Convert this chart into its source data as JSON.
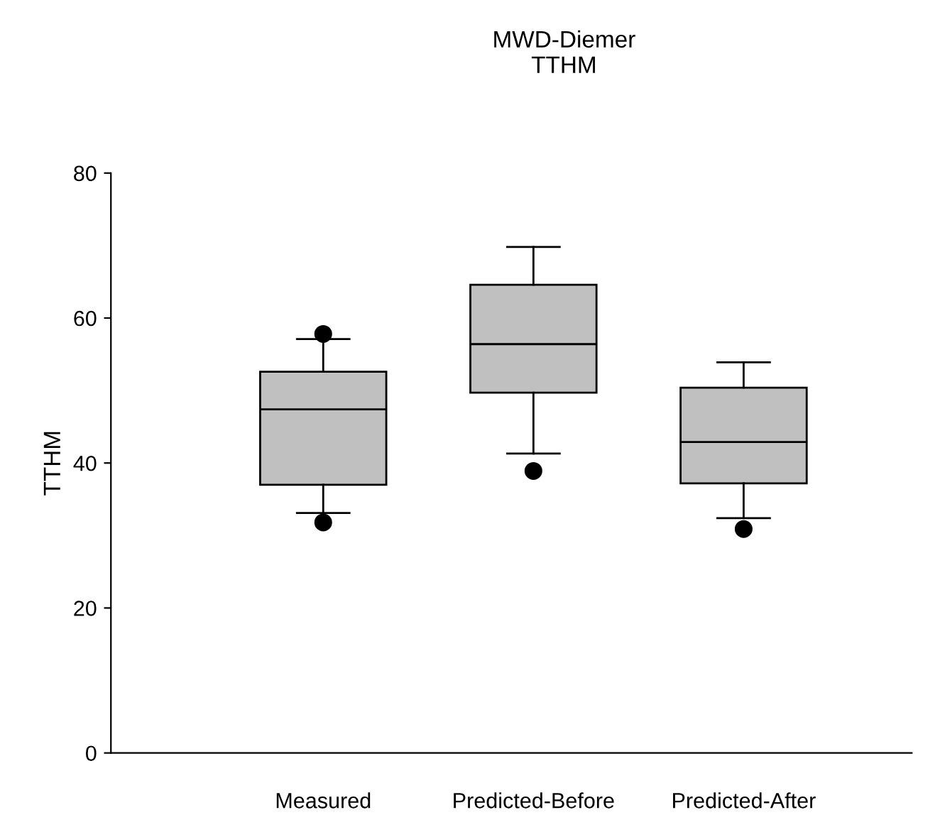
{
  "chart_data": {
    "type": "box",
    "title": "MWD-Diemer\nTTHM",
    "ylabel": "TTHM",
    "categories": [
      "Measured",
      "Predicted-Before",
      "Predicted-After"
    ],
    "boxes": [
      {
        "low": 33.1,
        "q1": 37.0,
        "median": 47.4,
        "q3": 52.6,
        "high": 57.1,
        "outliers": [
          57.8,
          31.8
        ]
      },
      {
        "low": 41.3,
        "q1": 49.7,
        "median": 56.4,
        "q3": 64.6,
        "high": 69.8,
        "outliers": [
          38.9
        ]
      },
      {
        "low": 32.4,
        "q1": 37.2,
        "median": 42.9,
        "q3": 50.4,
        "high": 53.9,
        "outliers": [
          30.9
        ]
      }
    ],
    "color": "#c0c0c0",
    "ylim": [
      0,
      80
    ],
    "yticks": [
      0,
      20,
      40,
      60,
      80
    ],
    "grid": false,
    "legend": false
  }
}
